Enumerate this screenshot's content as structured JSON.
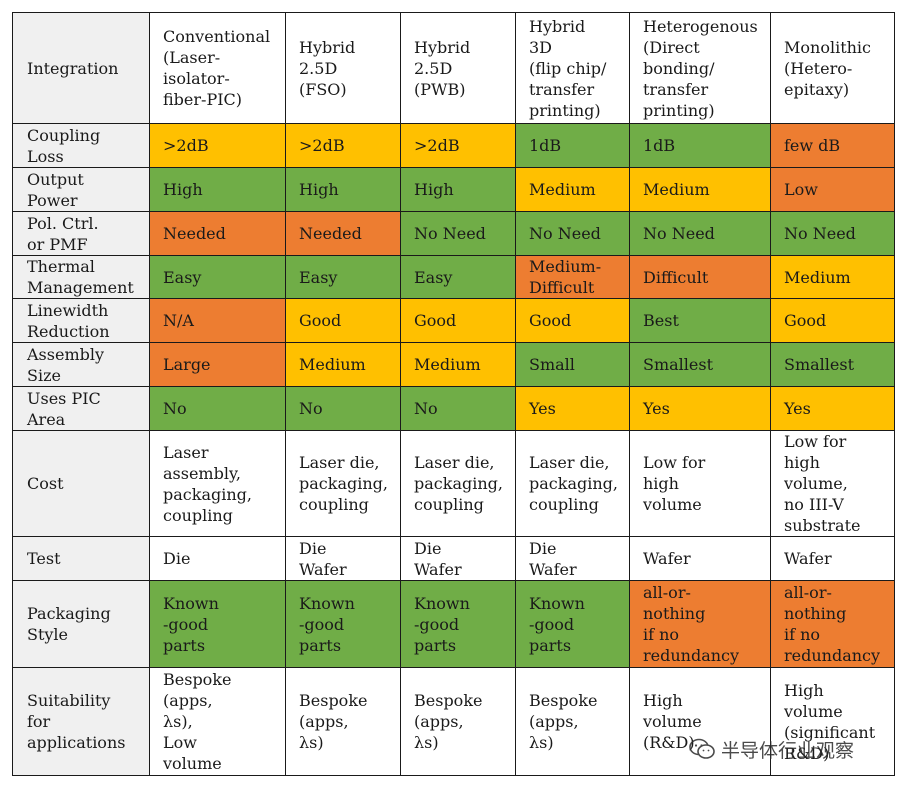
{
  "columns": [
    "Integration",
    "Conventional\n(Laser-\nisolator-\nfiber-PIC)",
    "Hybrid\n2.5D\n(FSO)",
    "Hybrid\n2.5D\n(PWB)",
    "Hybrid\n3D\n(flip chip/\ntransfer\nprinting)",
    "Heterogenous\n(Direct\nbonding/\ntransfer\nprinting)",
    "Monolithic\n(Hetero-\nepitaxy)"
  ],
  "rows": [
    {
      "label": "Coupling\nLoss",
      "cells": [
        {
          "text": ">2dB",
          "color": "yellow"
        },
        {
          "text": ">2dB",
          "color": "yellow"
        },
        {
          "text": ">2dB",
          "color": "yellow"
        },
        {
          "text": "1dB",
          "color": "green"
        },
        {
          "text": "1dB",
          "color": "green"
        },
        {
          "text": "few dB",
          "color": "orange"
        }
      ]
    },
    {
      "label": "Output\nPower",
      "cells": [
        {
          "text": "High",
          "color": "green"
        },
        {
          "text": "High",
          "color": "green"
        },
        {
          "text": "High",
          "color": "green"
        },
        {
          "text": "Medium",
          "color": "yellow"
        },
        {
          "text": "Medium",
          "color": "yellow"
        },
        {
          "text": "Low",
          "color": "orange"
        }
      ]
    },
    {
      "label": "Pol. Ctrl.\nor PMF",
      "cells": [
        {
          "text": "Needed",
          "color": "orange"
        },
        {
          "text": "Needed",
          "color": "orange"
        },
        {
          "text": "No Need",
          "color": "green"
        },
        {
          "text": "No Need",
          "color": "green"
        },
        {
          "text": "No Need",
          "color": "green"
        },
        {
          "text": "No Need",
          "color": "green"
        }
      ]
    },
    {
      "label": "Thermal\nManagement",
      "cells": [
        {
          "text": "Easy",
          "color": "green"
        },
        {
          "text": "Easy",
          "color": "green"
        },
        {
          "text": "Easy",
          "color": "green"
        },
        {
          "text": "Medium-\nDifficult",
          "color": "orange"
        },
        {
          "text": "Difficult",
          "color": "orange"
        },
        {
          "text": "Medium",
          "color": "yellow"
        }
      ]
    },
    {
      "label": "Linewidth\nReduction",
      "cells": [
        {
          "text": "N/A",
          "color": "orange"
        },
        {
          "text": "Good",
          "color": "yellow"
        },
        {
          "text": "Good",
          "color": "yellow"
        },
        {
          "text": "Good",
          "color": "yellow"
        },
        {
          "text": "Best",
          "color": "green"
        },
        {
          "text": "Good",
          "color": "yellow"
        }
      ]
    },
    {
      "label": "Assembly\nSize",
      "cells": [
        {
          "text": "Large",
          "color": "orange"
        },
        {
          "text": "Medium",
          "color": "yellow"
        },
        {
          "text": "Medium",
          "color": "yellow"
        },
        {
          "text": "Small",
          "color": "green"
        },
        {
          "text": "Smallest",
          "color": "green"
        },
        {
          "text": "Smallest",
          "color": "green"
        }
      ]
    },
    {
      "label": "Uses PIC\nArea",
      "cells": [
        {
          "text": "No",
          "color": "green"
        },
        {
          "text": "No",
          "color": "green"
        },
        {
          "text": "No",
          "color": "green"
        },
        {
          "text": "Yes",
          "color": "yellow"
        },
        {
          "text": "Yes",
          "color": "yellow"
        },
        {
          "text": "Yes",
          "color": "yellow"
        }
      ]
    },
    {
      "label": "Cost",
      "cells": [
        {
          "text": "Laser\nassembly,\npackaging,\ncoupling",
          "color": "white"
        },
        {
          "text": "Laser die,\npackaging,\ncoupling",
          "color": "white"
        },
        {
          "text": "Laser die,\npackaging,\ncoupling",
          "color": "white"
        },
        {
          "text": "Laser die,\npackaging,\ncoupling",
          "color": "white"
        },
        {
          "text": "Low for\nhigh\nvolume",
          "color": "white"
        },
        {
          "text": "Low for\nhigh\nvolume,\nno III-V\nsubstrate",
          "color": "white"
        }
      ]
    },
    {
      "label": "Test",
      "cells": [
        {
          "text": "Die",
          "color": "white"
        },
        {
          "text": "Die\nWafer",
          "color": "white"
        },
        {
          "text": "Die\nWafer",
          "color": "white"
        },
        {
          "text": "Die\nWafer",
          "color": "white"
        },
        {
          "text": "Wafer",
          "color": "white"
        },
        {
          "text": "Wafer",
          "color": "white"
        }
      ]
    },
    {
      "label": "Packaging\nStyle",
      "cells": [
        {
          "text": "Known\n-good\nparts",
          "color": "green"
        },
        {
          "text": "Known\n-good\nparts",
          "color": "green"
        },
        {
          "text": "Known\n-good\nparts",
          "color": "green"
        },
        {
          "text": "Known\n-good\nparts",
          "color": "green"
        },
        {
          "text": "all-or-\nnothing\nif no\nredundancy",
          "color": "orange"
        },
        {
          "text": "all-or-\nnothing\nif no\nredundancy",
          "color": "orange"
        }
      ]
    },
    {
      "label": "Suitability\nfor\napplications",
      "cells": [
        {
          "text": "Bespoke\n(apps,\nλs),\nLow\nvolume",
          "color": "white"
        },
        {
          "text": "Bespoke\n(apps,\nλs)",
          "color": "white"
        },
        {
          "text": "Bespoke\n(apps,\nλs)",
          "color": "white"
        },
        {
          "text": "Bespoke\n(apps,\nλs)",
          "color": "white"
        },
        {
          "text": "High\nvolume\n(R&D)",
          "color": "white"
        },
        {
          "text": "High\nvolume\n(significant\nR&D)",
          "color": "white"
        }
      ]
    }
  ],
  "watermark": "半导体行业观察",
  "palette": {
    "green": "#70ad47",
    "yellow": "#ffc000",
    "orange": "#ed7d31",
    "white": "#ffffff",
    "header_bg": "#f0f0f0"
  }
}
